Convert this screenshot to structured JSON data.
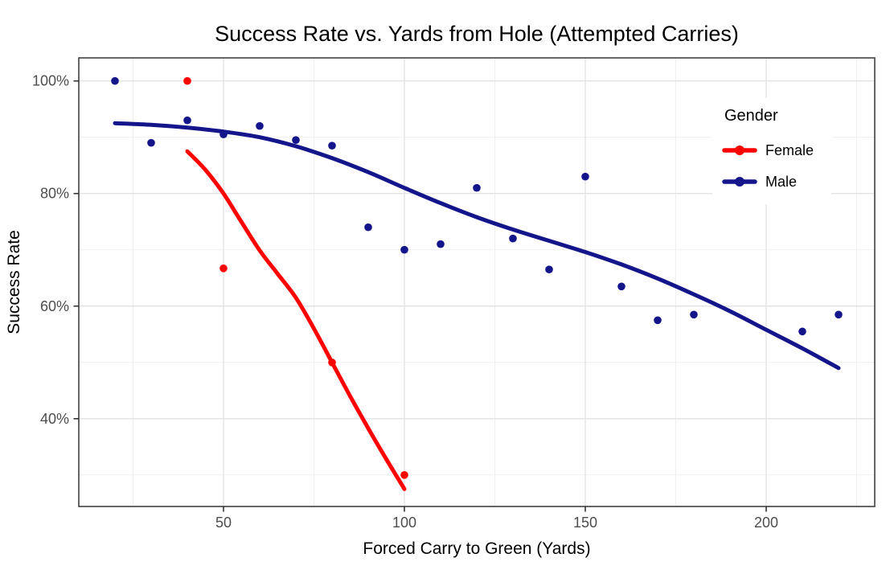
{
  "chart_data": {
    "type": "scatter",
    "title": "Success Rate vs. Yards from Hole (Attempted Carries)",
    "xlabel": "Forced Carry to Green (Yards)",
    "ylabel": "Success Rate",
    "x_axis": {
      "tick_values": [
        50,
        100,
        150,
        200
      ],
      "tick_labels": [
        "50",
        "100",
        "150",
        "200"
      ],
      "minor_ticks": [
        25,
        75,
        125,
        175,
        225
      ],
      "domain": [
        10,
        230
      ]
    },
    "y_axis": {
      "tick_values": [
        40,
        60,
        80,
        100
      ],
      "tick_labels": [
        "40%",
        "60%",
        "80%",
        "100%"
      ],
      "minor_ticks": [
        30,
        50,
        70,
        90
      ],
      "domain": [
        24.4,
        104.1
      ]
    },
    "legend": {
      "title": "Gender",
      "position": "inside-top-right",
      "entries": [
        {
          "label": "Female",
          "color": "#FF0000"
        },
        {
          "label": "Male",
          "color": "#14148B"
        }
      ]
    },
    "series": [
      {
        "name": "Female",
        "color": "#FF0000",
        "points": [
          [
            40,
            100
          ],
          [
            50,
            66.7
          ],
          [
            80,
            50
          ],
          [
            100,
            30
          ]
        ],
        "smooth_curve": [
          [
            40,
            87.5
          ],
          [
            45,
            84.2
          ],
          [
            50,
            80
          ],
          [
            55,
            74.9
          ],
          [
            60,
            69.9
          ],
          [
            65,
            65.7
          ],
          [
            70,
            61.5
          ],
          [
            75,
            56
          ],
          [
            80,
            50
          ],
          [
            85,
            44
          ],
          [
            90,
            38.3
          ],
          [
            95,
            32.8
          ],
          [
            100,
            27.5
          ]
        ]
      },
      {
        "name": "Male",
        "color": "#14148B",
        "points": [
          [
            20,
            100
          ],
          [
            30,
            89
          ],
          [
            40,
            93
          ],
          [
            50,
            90.5
          ],
          [
            60,
            92
          ],
          [
            70,
            89.5
          ],
          [
            80,
            88.5
          ],
          [
            90,
            74
          ],
          [
            100,
            70
          ],
          [
            110,
            71
          ],
          [
            120,
            81
          ],
          [
            130,
            72
          ],
          [
            140,
            66.5
          ],
          [
            150,
            83
          ],
          [
            160,
            63.5
          ],
          [
            170,
            57.5
          ],
          [
            180,
            58.5
          ],
          [
            210,
            55.5
          ],
          [
            220,
            58.5
          ]
        ],
        "smooth_curve": [
          [
            20,
            92.5
          ],
          [
            30,
            92.2
          ],
          [
            40,
            91.7
          ],
          [
            50,
            91
          ],
          [
            60,
            90
          ],
          [
            70,
            88.4
          ],
          [
            80,
            86.3
          ],
          [
            90,
            83.8
          ],
          [
            100,
            81
          ],
          [
            110,
            78.3
          ],
          [
            120,
            75.8
          ],
          [
            130,
            73.6
          ],
          [
            140,
            71.6
          ],
          [
            150,
            69.6
          ],
          [
            160,
            67.4
          ],
          [
            170,
            64.9
          ],
          [
            180,
            62.1
          ],
          [
            190,
            59.1
          ],
          [
            200,
            55.8
          ],
          [
            210,
            52.5
          ],
          [
            220,
            49
          ]
        ]
      }
    ],
    "style": {
      "grid_major_color": "#E3E3E3",
      "grid_minor_color": "#EFEFEF",
      "panel_border_color": "#404040",
      "tick_mark_color": "#333333",
      "tick_label_color": "#4D4D4D",
      "background": "#FFFFFF",
      "point_radius": 4.8,
      "curve_width": 5
    }
  }
}
